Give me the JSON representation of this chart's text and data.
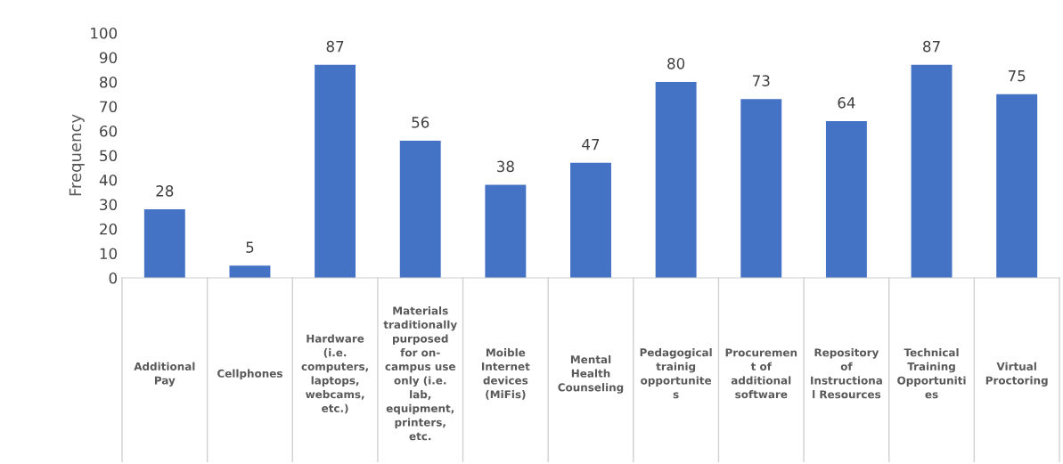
{
  "chart_data": {
    "type": "bar",
    "ylabel": "Frequency",
    "categories": [
      "Additional\nPay",
      "Cellphones",
      "Hardware\n(i.e.\ncomputers,\nlaptops,\nwebcams,\netc.)",
      "Materials\ntraditionally\npurposed\nfor on-\ncampus use\nonly (i.e.\nlab,\nequipment,\nprinters,\netc.",
      "Moible\nInternet\ndevices\n(MiFis)",
      "Mental\nHealth\nCounseling",
      "Pedagogical\ntrainig\nopportunite\ns",
      "Procuremen\nt of\nadditional\nsoftware",
      "Repository\nof\nInstructiona\nl Resources",
      "Technical\nTraining\nOpportuniti\nes",
      "Virtual\nProctoring"
    ],
    "values": [
      28,
      5,
      87,
      56,
      38,
      47,
      80,
      73,
      64,
      87,
      75
    ],
    "color": "#4472c4",
    "ylim": [
      0,
      100
    ],
    "yticks": [
      0,
      10,
      20,
      30,
      40,
      50,
      60,
      70,
      80,
      90,
      100
    ],
    "data_labels": true,
    "grid": false,
    "legend": false
  }
}
